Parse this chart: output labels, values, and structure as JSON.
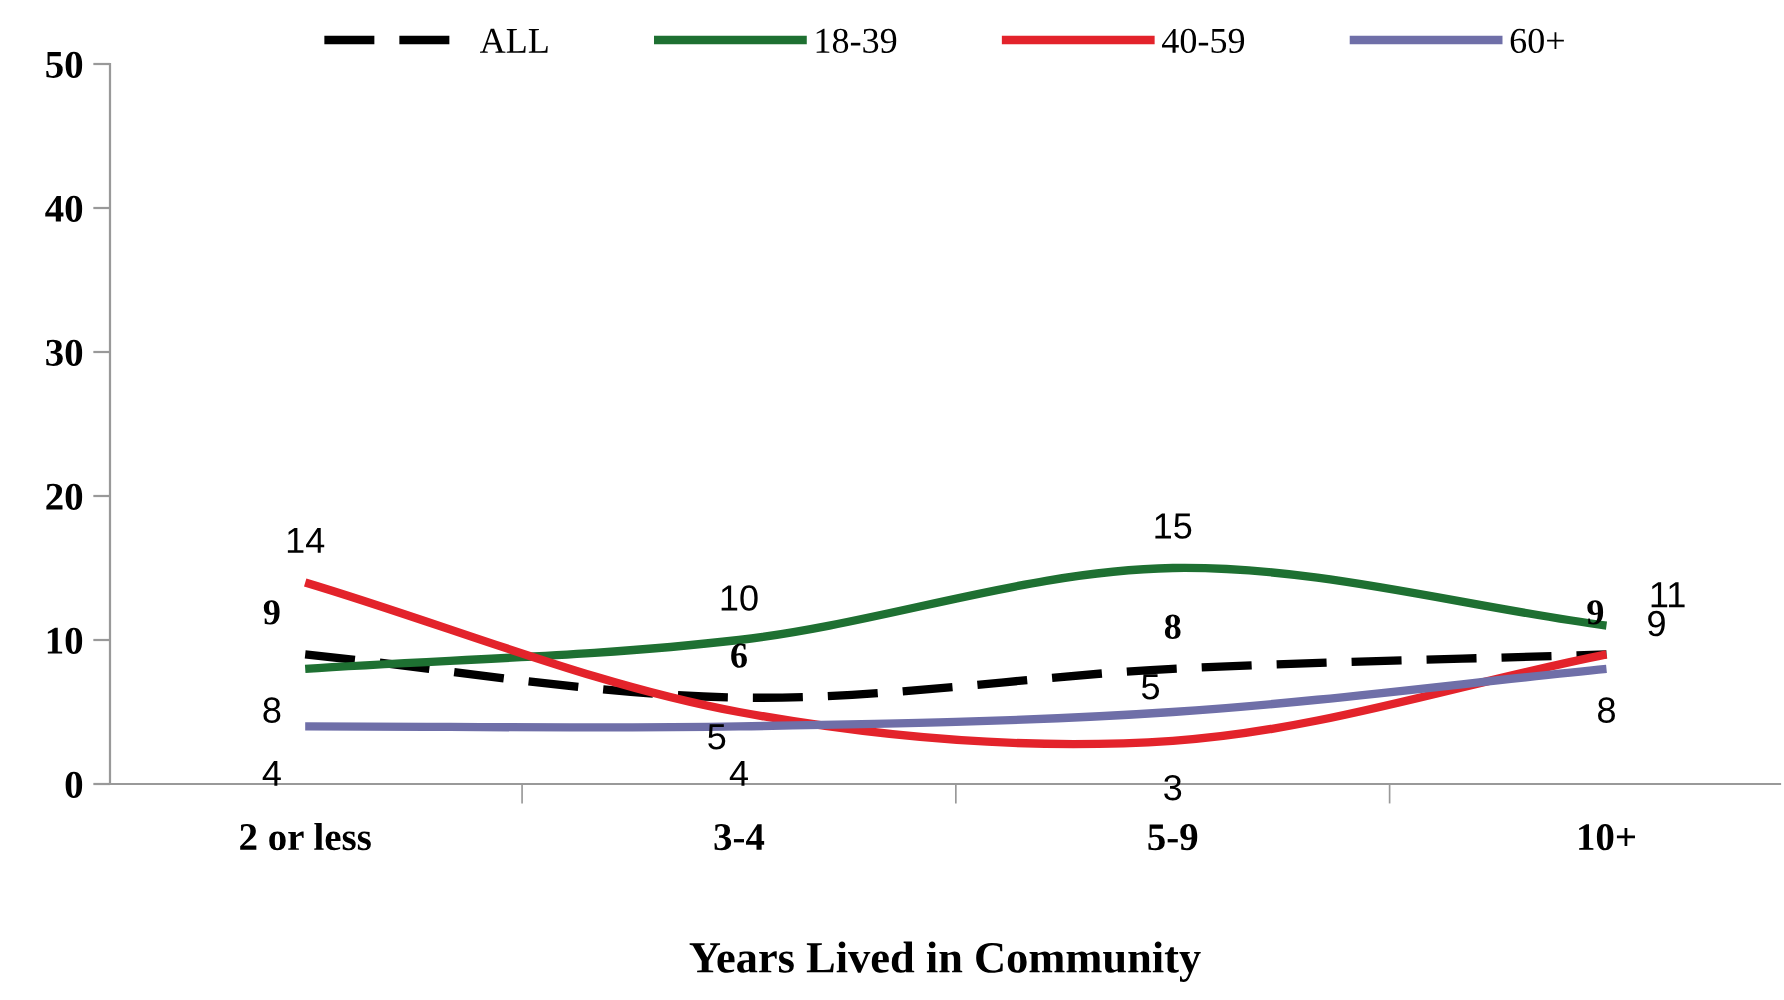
{
  "chart_data": {
    "type": "line",
    "xlabel": "Years Lived in Community",
    "categories": [
      "2 or less",
      "3-4",
      "5-9",
      "10+"
    ],
    "ylim": [
      0,
      50
    ],
    "yticks": [
      0,
      10,
      20,
      30,
      40,
      50
    ],
    "grid": false,
    "legend": "top",
    "data_labels": true,
    "marker": "none",
    "series": [
      {
        "name": "ALL",
        "color": "#000000",
        "values": [
          9,
          6,
          8,
          9
        ],
        "line_style": "dashed"
      },
      {
        "name": "18-39",
        "color": "#1e7032",
        "values": [
          8,
          10,
          15,
          11
        ],
        "line_style": "solid"
      },
      {
        "name": "40-59",
        "color": "#e3232b",
        "values": [
          14,
          5,
          3,
          9
        ],
        "line_style": "solid"
      },
      {
        "name": "60+",
        "color": "#6f6fa8",
        "values": [
          4,
          4,
          5,
          8
        ],
        "line_style": "solid"
      }
    ]
  }
}
